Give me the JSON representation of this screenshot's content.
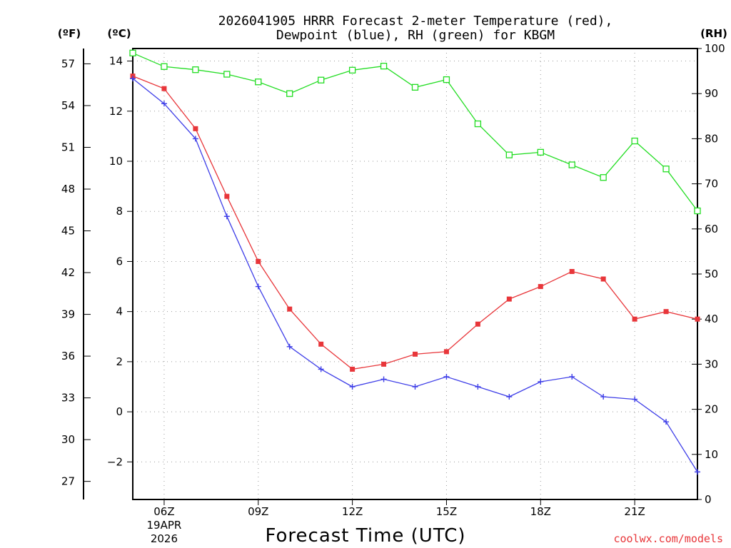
{
  "chart_data": {
    "type": "line",
    "title_line1": "2026041905 HRRR Forecast 2-meter Temperature (red),",
    "title_line2": "Dewpoint (blue), RH (green) for KBGM",
    "xlabel": "Forecast Time (UTC)",
    "credit": "coolwx.com/models",
    "unit_f": "(ºF)",
    "unit_c": "(ºC)",
    "unit_rh": "(RH)",
    "x_hours": [
      5,
      6,
      7,
      8,
      9,
      10,
      11,
      12,
      13,
      14,
      15,
      16,
      17,
      18,
      19,
      20,
      21,
      22,
      23
    ],
    "xlim": [
      5,
      23
    ],
    "x_ticks": [
      {
        "hour": 6,
        "label": "06Z",
        "sub1": "19APR",
        "sub2": "2026"
      },
      {
        "hour": 9,
        "label": "09Z"
      },
      {
        "hour": 12,
        "label": "12Z"
      },
      {
        "hour": 15,
        "label": "15Z"
      },
      {
        "hour": 18,
        "label": "18Z"
      },
      {
        "hour": 21,
        "label": "21Z"
      }
    ],
    "ylim_c": [
      -3.5,
      14.5
    ],
    "yticks_c": [
      "-2",
      "0",
      "2",
      "4",
      "6",
      "8",
      "10",
      "12",
      "14"
    ],
    "yticks_f": [
      "27",
      "30",
      "33",
      "36",
      "39",
      "42",
      "45",
      "48",
      "51",
      "54",
      "57"
    ],
    "ylim_rh": [
      0,
      100
    ],
    "yticks_rh": [
      "0",
      "10",
      "20",
      "30",
      "40",
      "50",
      "60",
      "70",
      "80",
      "90",
      "100"
    ],
    "series": [
      {
        "name": "Temperature",
        "units": "C",
        "color": "#e8363a",
        "marker": "filled-square",
        "values": [
          13.4,
          12.9,
          11.3,
          8.6,
          6.0,
          4.1,
          2.7,
          1.7,
          1.9,
          2.3,
          2.4,
          3.5,
          4.5,
          5.0,
          5.6,
          5.3,
          3.7,
          4.0,
          3.7
        ]
      },
      {
        "name": "Dewpoint",
        "units": "C",
        "color": "#3f3fe8",
        "marker": "plus",
        "values": [
          13.3,
          12.3,
          10.9,
          7.8,
          5.0,
          2.6,
          1.7,
          1.0,
          1.3,
          1.0,
          1.4,
          1.0,
          0.6,
          1.2,
          1.4,
          0.6,
          0.5,
          -0.4,
          -2.4
        ]
      },
      {
        "name": "RH",
        "units": "%",
        "color": "#22dd22",
        "marker": "open-square",
        "values": [
          99,
          96,
          95.3,
          94.3,
          92.6,
          90,
          93,
          95.2,
          96.1,
          91.4,
          93.1,
          83.3,
          76.4,
          77,
          74.2,
          71.4,
          79.5,
          73.3,
          64
        ]
      }
    ]
  }
}
